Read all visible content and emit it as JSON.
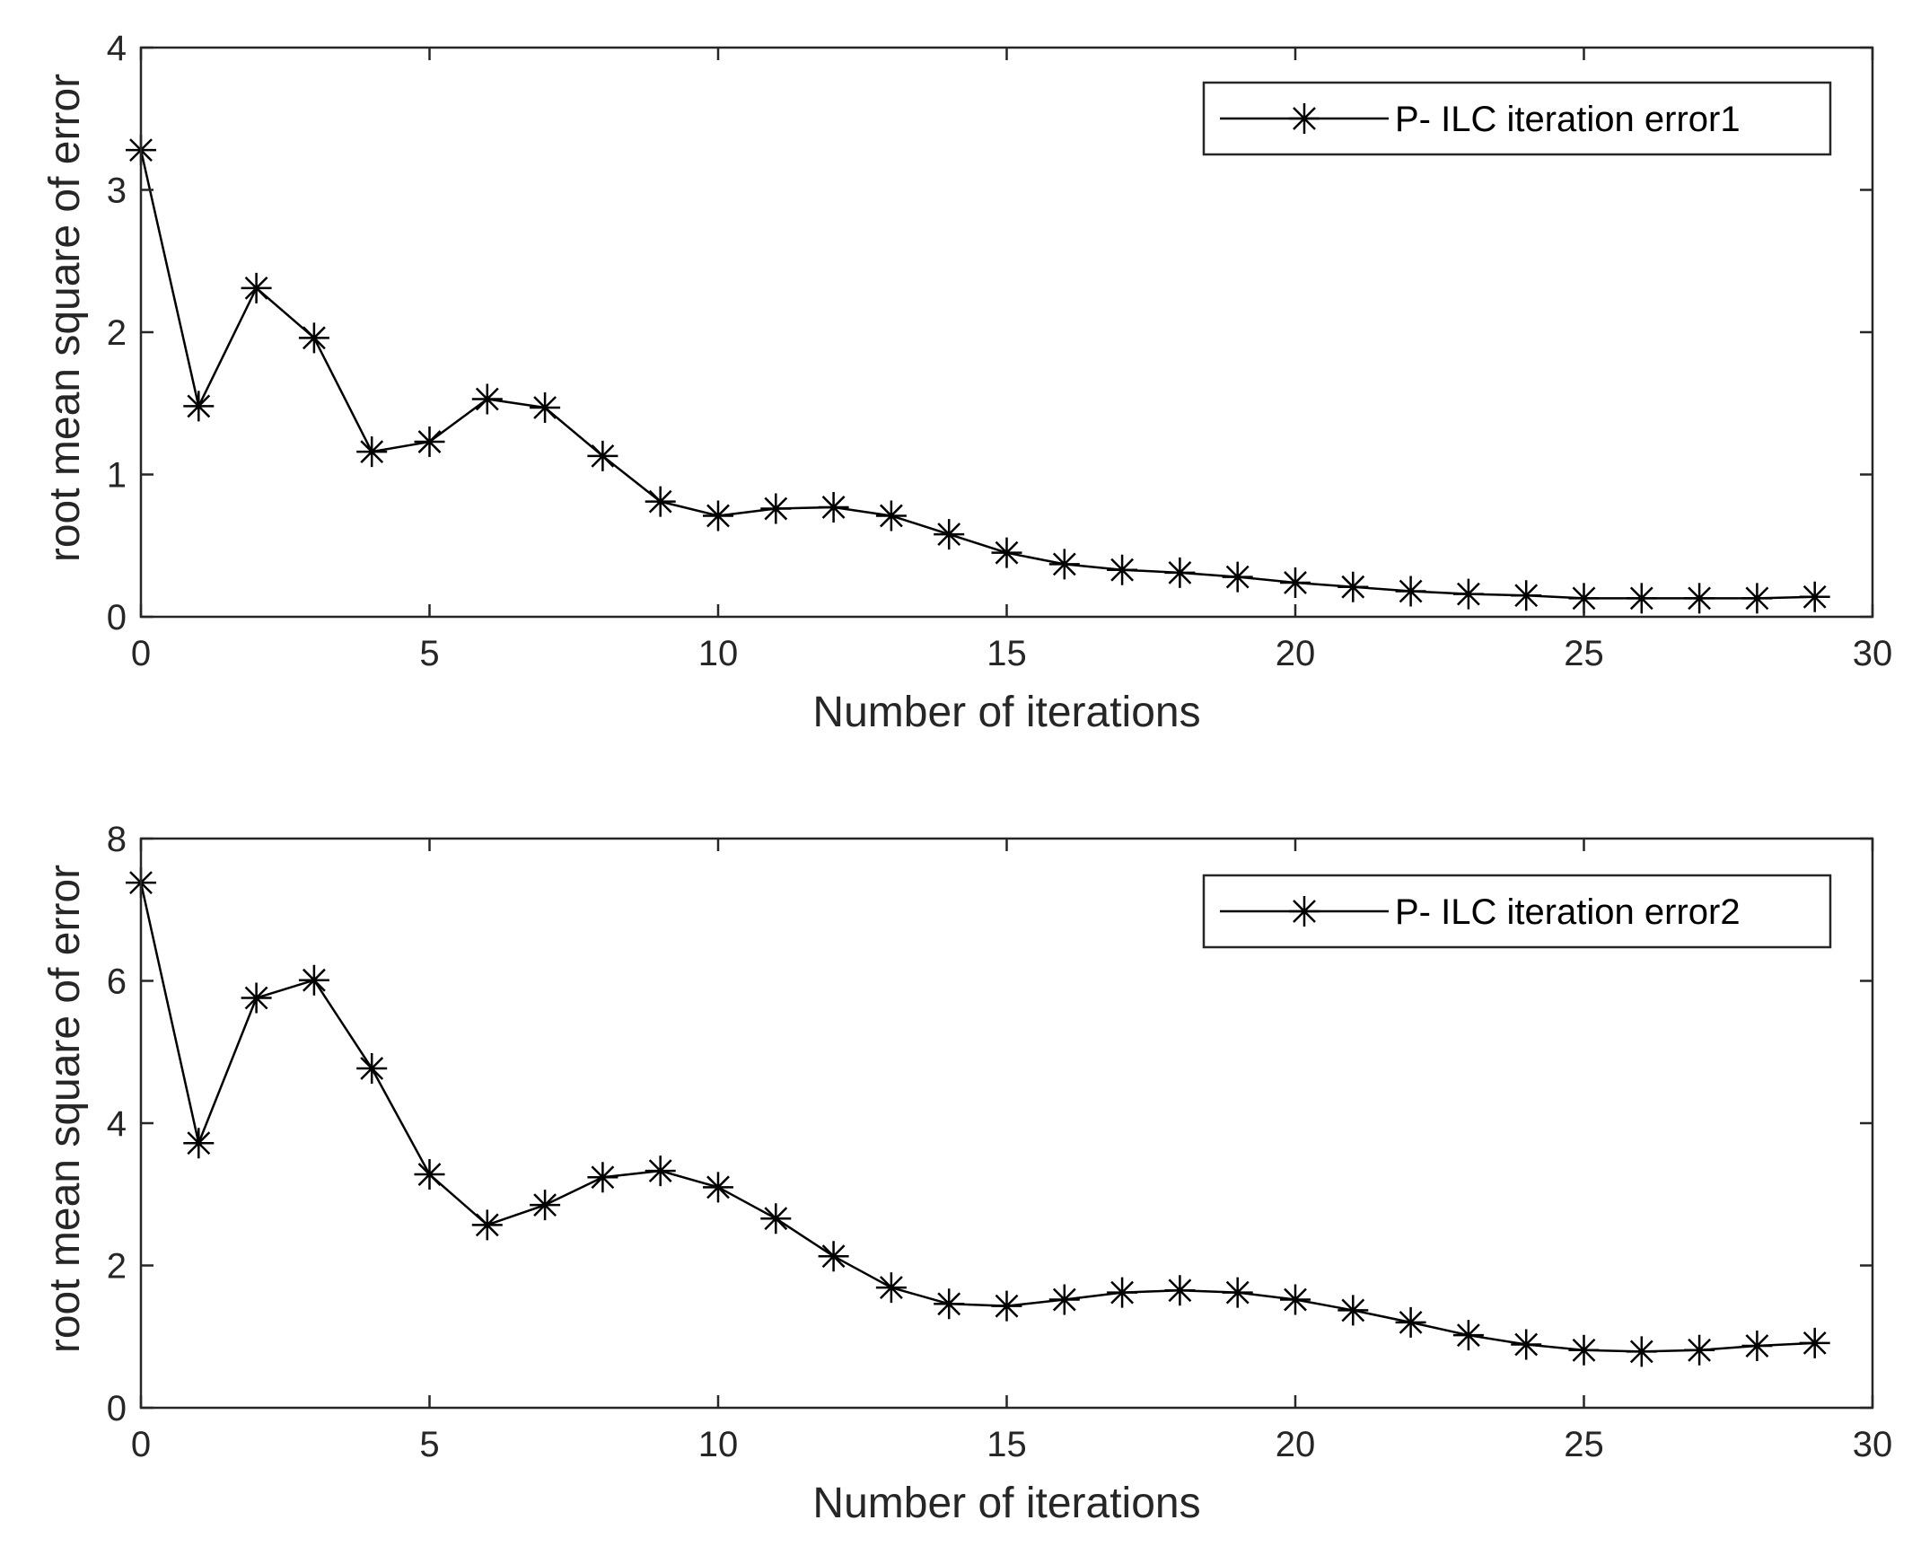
{
  "chart_data": [
    {
      "type": "line",
      "title": "",
      "xlabel": "Number of iterations",
      "ylabel": "root mean square of error",
      "xlim": [
        0,
        30
      ],
      "ylim": [
        0,
        4
      ],
      "xticks": [
        0,
        5,
        10,
        15,
        20,
        25,
        30
      ],
      "yticks": [
        0,
        1,
        2,
        3,
        4
      ],
      "grid": false,
      "legend_position": "top-right",
      "series": [
        {
          "name": "P- ILC iteration error1",
          "marker": "asterisk",
          "color": "#000000",
          "x": [
            0,
            1,
            2,
            3,
            4,
            5,
            6,
            7,
            8,
            9,
            10,
            11,
            12,
            13,
            14,
            15,
            16,
            17,
            18,
            19,
            20,
            21,
            22,
            23,
            24,
            25,
            26,
            27,
            28,
            29
          ],
          "values": [
            3.28,
            1.48,
            2.31,
            1.96,
            1.16,
            1.23,
            1.53,
            1.47,
            1.13,
            0.81,
            0.71,
            0.76,
            0.77,
            0.71,
            0.58,
            0.45,
            0.37,
            0.33,
            0.31,
            0.28,
            0.24,
            0.21,
            0.18,
            0.16,
            0.15,
            0.13,
            0.13,
            0.13,
            0.13,
            0.14
          ]
        }
      ]
    },
    {
      "type": "line",
      "title": "",
      "xlabel": "Number of iterations",
      "ylabel": "root mean square of error",
      "xlim": [
        0,
        30
      ],
      "ylim": [
        0,
        8
      ],
      "xticks": [
        0,
        5,
        10,
        15,
        20,
        25,
        30
      ],
      "yticks": [
        0,
        2,
        4,
        6,
        8
      ],
      "grid": false,
      "legend_position": "top-right",
      "series": [
        {
          "name": "P- ILC iteration error2",
          "marker": "asterisk",
          "color": "#000000",
          "x": [
            0,
            1,
            2,
            3,
            4,
            5,
            6,
            7,
            8,
            9,
            10,
            11,
            12,
            13,
            14,
            15,
            16,
            17,
            18,
            19,
            20,
            21,
            22,
            23,
            24,
            25,
            26,
            27,
            28,
            29
          ],
          "values": [
            7.38,
            3.72,
            5.76,
            6.01,
            4.77,
            3.28,
            2.57,
            2.85,
            3.24,
            3.33,
            3.1,
            2.66,
            2.13,
            1.69,
            1.46,
            1.43,
            1.52,
            1.62,
            1.65,
            1.62,
            1.52,
            1.37,
            1.2,
            1.02,
            0.89,
            0.81,
            0.79,
            0.81,
            0.87,
            0.91
          ]
        }
      ]
    }
  ]
}
